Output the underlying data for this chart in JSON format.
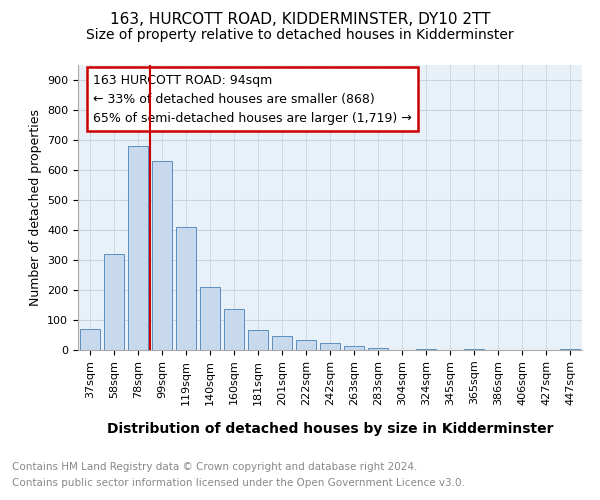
{
  "title": "163, HURCOTT ROAD, KIDDERMINSTER, DY10 2TT",
  "subtitle": "Size of property relative to detached houses in Kidderminster",
  "xlabel": "Distribution of detached houses by size in Kidderminster",
  "ylabel": "Number of detached properties",
  "footer_line1": "Contains HM Land Registry data © Crown copyright and database right 2024.",
  "footer_line2": "Contains public sector information licensed under the Open Government Licence v3.0.",
  "categories": [
    "37sqm",
    "58sqm",
    "78sqm",
    "99sqm",
    "119sqm",
    "140sqm",
    "160sqm",
    "181sqm",
    "201sqm",
    "222sqm",
    "242sqm",
    "263sqm",
    "283sqm",
    "304sqm",
    "324sqm",
    "345sqm",
    "365sqm",
    "386sqm",
    "406sqm",
    "427sqm",
    "447sqm"
  ],
  "values": [
    70,
    320,
    680,
    630,
    410,
    210,
    138,
    68,
    48,
    35,
    22,
    12,
    8,
    0,
    5,
    0,
    5,
    0,
    0,
    0,
    5
  ],
  "bar_color": "#c8d9ee",
  "bar_edge_color": "#5a8fc0",
  "annotation_box_text": "163 HURCOTT ROAD: 94sqm\n← 33% of detached houses are smaller (868)\n65% of semi-detached houses are larger (1,719) →",
  "vline_x_index": 3,
  "vline_color": "#cc0000",
  "annotation_box_color": "#cc0000",
  "annotation_box_bg": "#ffffff",
  "ylim": [
    0,
    950
  ],
  "yticks": [
    0,
    100,
    200,
    300,
    400,
    500,
    600,
    700,
    800,
    900
  ],
  "grid_color": "#c8d4e0",
  "bg_color": "#e8f0f8",
  "title_fontsize": 11,
  "subtitle_fontsize": 10,
  "ylabel_fontsize": 9,
  "xlabel_fontsize": 10,
  "tick_fontsize": 8,
  "footer_fontsize": 7.5,
  "ann_fontsize": 9
}
